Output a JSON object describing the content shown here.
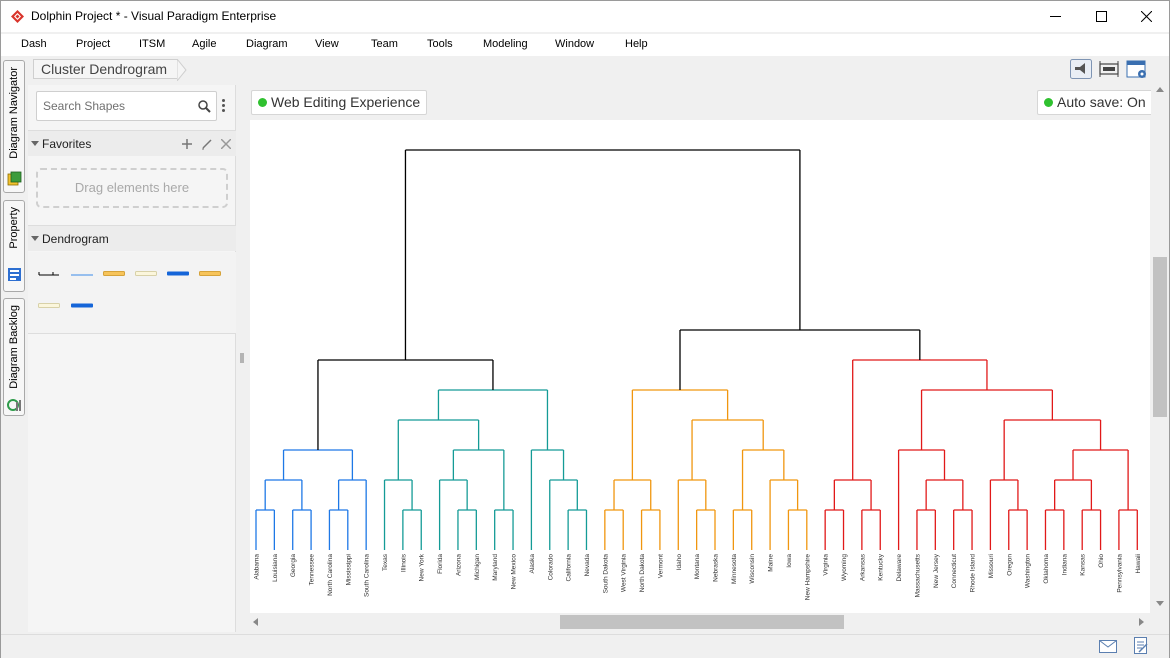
{
  "window": {
    "title": "Dolphin Project * - Visual Paradigm Enterprise"
  },
  "menu": [
    "Dash",
    "Project",
    "ITSM",
    "Agile",
    "Diagram",
    "View",
    "Team",
    "Tools",
    "Modeling",
    "Window",
    "Help"
  ],
  "left_tabs": [
    "Diagram Navigator",
    "Property",
    "Diagram Backlog"
  ],
  "breadcrumb": {
    "label": "Cluster Dendrogram"
  },
  "toolbar_icons": [
    "announcement-icon",
    "fit-width-icon",
    "diagram-settings-icon"
  ],
  "palette": {
    "search_placeholder": "Search Shapes",
    "favorites_title": "Favorites",
    "drop_hint": "Drag elements here",
    "dendrogram_title": "Dendrogram"
  },
  "canvas_chips": {
    "web_editing": "Web Editing Experience",
    "auto_save": "Auto save: On"
  },
  "colors": {
    "root": "#000000",
    "cluster_blue": "#1e78e6",
    "cluster_teal": "#149b96",
    "cluster_orange": "#f0960f",
    "cluster_red": "#e11919",
    "status_green": "#2fc12f"
  },
  "chart_data": {
    "type": "dendrogram",
    "title": "",
    "leaves": [
      "Alabama",
      "Louisiana",
      "Georgia",
      "Tennessee",
      "North Carolina",
      "Mississippi",
      "South Carolina",
      "Texas",
      "Illinois",
      "New York",
      "Florida",
      "Arizona",
      "Michigan",
      "Maryland",
      "New Mexico",
      "Alaska",
      "Colorado",
      "California",
      "Nevada",
      "South Dakota",
      "West Virginia",
      "North Dakota",
      "Vermont",
      "Idaho",
      "Montana",
      "Nebraska",
      "Minnesota",
      "Wisconsin",
      "Maine",
      "Iowa",
      "New Hampshire",
      "Virginia",
      "Wyoming",
      "Arkansas",
      "Kentucky",
      "Delaware",
      "Massachusetts",
      "New Jersey",
      "Connecticut",
      "Rhode Island",
      "Missouri",
      "Oregon",
      "Washington",
      "Oklahoma",
      "Indiana",
      "Kansas",
      "Ohio",
      "Pennsylvania",
      "Hawaii"
    ],
    "clusters": [
      {
        "color": "cluster_blue",
        "leaves": [
          "Alabama",
          "Louisiana",
          "Georgia",
          "Tennessee",
          "North Carolina",
          "Mississippi",
          "South Carolina"
        ]
      },
      {
        "color": "cluster_teal",
        "leaves": [
          "Texas",
          "Illinois",
          "New York",
          "Florida",
          "Arizona",
          "Michigan",
          "Maryland",
          "New Mexico",
          "Alaska",
          "Colorado",
          "California",
          "Nevada"
        ]
      },
      {
        "color": "cluster_orange",
        "leaves": [
          "South Dakota",
          "West Virginia",
          "North Dakota",
          "Vermont",
          "Idaho",
          "Montana",
          "Nebraska",
          "Minnesota",
          "Wisconsin",
          "Maine",
          "Iowa",
          "New Hampshire"
        ]
      },
      {
        "color": "cluster_red",
        "leaves": [
          "Virginia",
          "Wyoming",
          "Arkansas",
          "Kentucky",
          "Delaware",
          "Massachusetts",
          "New Jersey",
          "Connecticut",
          "Rhode Island",
          "Missouri",
          "Oregon",
          "Washington",
          "Oklahoma",
          "Indiana",
          "Kansas",
          "Ohio",
          "Pennsylvania",
          "Hawaii"
        ]
      }
    ],
    "tree": [
      [
        [
          [
            [
              "Alabama",
              "Louisiana"
            ],
            [
              "Georgia",
              "Tennessee"
            ]
          ],
          [
            [
              "North Carolina",
              "Mississippi"
            ],
            "South Carolina"
          ]
        ],
        [
          [
            [
              "Texas",
              [
                "Illinois",
                "New York"
              ]
            ],
            [
              [
                "Florida",
                [
                  "Arizona",
                  "Michigan"
                ]
              ],
              [
                "Maryland",
                "New Mexico"
              ]
            ]
          ],
          [
            "Alaska",
            [
              "Colorado",
              [
                "California",
                "Nevada"
              ]
            ]
          ]
        ]
      ],
      [
        [
          [
            [
              "South Dakota",
              "West Virginia"
            ],
            [
              "North Dakota",
              "Vermont"
            ]
          ],
          [
            [
              "Idaho",
              [
                "Montana",
                "Nebraska"
              ]
            ],
            [
              [
                "Minnesota",
                "Wisconsin"
              ],
              [
                "Maine",
                [
                  "Iowa",
                  "New Hampshire"
                ]
              ]
            ]
          ]
        ],
        [
          [
            [
              "Virginia",
              "Wyoming"
            ],
            [
              "Arkansas",
              "Kentucky"
            ]
          ],
          [
            [
              "Delaware",
              [
                [
                  "Massachusetts",
                  "New Jersey"
                ],
                [
                  "Connecticut",
                  "Rhode Island"
                ]
              ]
            ],
            [
              [
                "Missouri",
                [
                  "Oregon",
                  "Washington"
                ]
              ],
              [
                [
                  [
                    "Oklahoma",
                    "Indiana"
                  ],
                  [
                    "Kansas",
                    "Ohio"
                  ]
                ],
                [
                  "Pennsylvania",
                  "Hawaii"
                ]
              ]
            ]
          ]
        ]
      ]
    ]
  }
}
